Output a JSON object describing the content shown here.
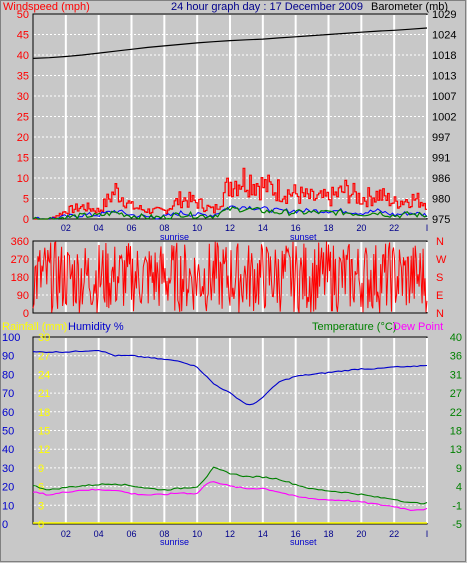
{
  "header": {
    "left_label": "Windspeed (mph)",
    "title": "24 hour graph day : 17 December 2009",
    "right_label": "Barometer (mb)"
  },
  "colors": {
    "wind": "#ff0000",
    "gust": "#ff0000",
    "avg_wind": "#0000ff",
    "wind_low": "#008000",
    "barometer": "#000000",
    "direction": "#ff0000",
    "humidity": "#0000cc",
    "temperature": "#008000",
    "dewpoint": "#ff00ff",
    "rainfall": "#ffff00",
    "plot_bg": "#c8c8c8",
    "grid": "#ffffff"
  },
  "chart_data": [
    {
      "type": "line",
      "title": "24 hour graph day : 17 December 2009",
      "ylabel_left": "Windspeed (mph)",
      "ylabel_right": "Barometer (mb)",
      "left_ticks": [
        "50",
        "45",
        "40",
        "35",
        "30",
        "25",
        "20",
        "15",
        "10",
        "5",
        "0"
      ],
      "right_ticks": [
        "1029",
        "1024",
        "1018",
        "1013",
        "1007",
        "1002",
        "997",
        "991",
        "986",
        "980",
        "975"
      ],
      "ylim_left": [
        0,
        50
      ],
      "ylim_right": [
        975,
        1029
      ],
      "x_ticks": [
        "02",
        "04",
        "06",
        "08",
        "10",
        "12",
        "14",
        "16",
        "18",
        "20",
        "22",
        "I"
      ],
      "x_markers": [
        "sunrise",
        "sunset"
      ],
      "grid": true,
      "series": [
        {
          "name": "Barometer (mb)",
          "axis": "right",
          "x": [
            0,
            1,
            2,
            3,
            4,
            5,
            6,
            7,
            8,
            9,
            10,
            11,
            12,
            13,
            14,
            15,
            16,
            17,
            18,
            19,
            20,
            21,
            22,
            23,
            24
          ],
          "values": [
            1017.3,
            1017.5,
            1017.8,
            1018.2,
            1018.7,
            1019.2,
            1019.7,
            1020.2,
            1020.6,
            1021.0,
            1021.4,
            1021.7,
            1022.0,
            1022.2,
            1022.4,
            1022.7,
            1023.0,
            1023.3,
            1023.6,
            1023.9,
            1024.2,
            1024.5,
            1024.7,
            1025.0,
            1025.3
          ]
        },
        {
          "name": "Windspeed (mph)",
          "axis": "left",
          "x": [
            0,
            1,
            2,
            3,
            4,
            5,
            6,
            7,
            8,
            9,
            10,
            11,
            12,
            13,
            14,
            15,
            16,
            17,
            18,
            19,
            20,
            21,
            22,
            23,
            24
          ],
          "values": [
            0,
            0,
            2,
            3,
            2,
            7,
            3,
            2,
            2,
            5,
            4,
            2,
            9,
            10,
            8,
            7,
            6,
            5,
            5,
            7,
            5,
            6,
            4,
            5,
            4
          ]
        },
        {
          "name": "Average wind",
          "axis": "left",
          "x": [
            0,
            1,
            2,
            3,
            4,
            5,
            6,
            7,
            8,
            9,
            10,
            11,
            12,
            13,
            14,
            15,
            16,
            17,
            18,
            19,
            20,
            21,
            22,
            23,
            24
          ],
          "values": [
            0,
            0,
            0.5,
            1,
            1,
            2,
            1,
            0.5,
            0.5,
            1.5,
            1,
            1,
            3,
            3,
            2.5,
            2,
            2,
            2,
            2,
            2,
            1.5,
            2,
            1,
            1.5,
            1
          ]
        }
      ]
    },
    {
      "type": "scatter",
      "ylabel_right": "N W S E N",
      "left_ticks": [
        "360",
        "270",
        "180",
        "90",
        "0"
      ],
      "right_ticks": [
        "N",
        "W",
        "S",
        "E",
        "N"
      ],
      "ylim": [
        0,
        360
      ],
      "series": [
        {
          "name": "Wind direction",
          "x_start": 0,
          "x_end": 24,
          "pattern": "varying 0-360"
        }
      ]
    },
    {
      "type": "line",
      "ylabel_left_1": "Rainfall (mm)",
      "ylabel_left_2": "Humidity %",
      "ylabel_right_1": "Temperature (°C)",
      "ylabel_right_2": "Dew Point",
      "humidity_ticks": [
        "100",
        "90",
        "80",
        "70",
        "60",
        "50",
        "40",
        "30",
        "20",
        "10",
        "0"
      ],
      "rain_ticks": [
        "30",
        "27",
        "24",
        "21",
        "18",
        "15",
        "12",
        "9",
        "6",
        "3",
        "0"
      ],
      "temp_ticks": [
        "40",
        "36",
        "31",
        "27",
        "22",
        "18",
        "13",
        "9",
        "4",
        "-1",
        "-5"
      ],
      "ylim_humidity": [
        0,
        100
      ],
      "ylim_temp": [
        -5,
        40
      ],
      "x_ticks": [
        "02",
        "04",
        "06",
        "08",
        "10",
        "12",
        "14",
        "16",
        "18",
        "20",
        "22",
        "I"
      ],
      "x_markers": [
        "sunrise",
        "sunset"
      ],
      "series": [
        {
          "name": "Humidity %",
          "axis": "humidity",
          "x": [
            0,
            2,
            4,
            5,
            6,
            8,
            9,
            10,
            11,
            12,
            13,
            13.5,
            14,
            15,
            16,
            17,
            18,
            19,
            20,
            21,
            22,
            23,
            24
          ],
          "values": [
            92,
            92,
            93,
            90,
            90,
            88,
            87,
            84,
            75,
            70,
            64,
            64,
            68,
            76,
            79,
            80,
            81,
            82,
            83,
            83,
            84,
            84,
            85
          ]
        },
        {
          "name": "Temperature (°C)",
          "axis": "temp",
          "x": [
            0,
            1,
            2,
            3,
            4,
            5,
            6,
            7,
            8,
            9,
            10,
            10.5,
            11,
            12,
            13,
            14,
            15,
            16,
            17,
            18,
            19,
            20,
            21,
            22,
            23,
            24
          ],
          "values": [
            4.2,
            3.2,
            3.8,
            4.2,
            4.5,
            4.7,
            4.2,
            3.6,
            3.2,
            3.6,
            4.0,
            6.0,
            8.5,
            7.2,
            6.4,
            6.3,
            5.8,
            4.5,
            3.4,
            3.0,
            2.6,
            2.1,
            1.4,
            1.0,
            0.1,
            0.0
          ]
        },
        {
          "name": "Dew Point",
          "axis": "temp",
          "x": [
            0,
            1,
            2,
            3,
            4,
            5,
            6,
            7,
            8,
            9,
            10,
            10.5,
            11,
            12,
            13,
            14,
            15,
            16,
            17,
            18,
            19,
            20,
            21,
            22,
            23,
            24
          ],
          "values": [
            2.7,
            2.0,
            2.7,
            3.2,
            3.2,
            3.2,
            2.3,
            2.0,
            2.1,
            2.5,
            2.3,
            4.5,
            5.3,
            4.1,
            3.5,
            3.6,
            2.7,
            1.6,
            1.1,
            0.8,
            0.7,
            0.3,
            -0.3,
            -0.8,
            -1.6,
            -1.4
          ]
        },
        {
          "name": "Rainfall (mm)",
          "axis": "rain",
          "x": [
            0,
            24
          ],
          "values": [
            0,
            0
          ]
        }
      ]
    }
  ]
}
